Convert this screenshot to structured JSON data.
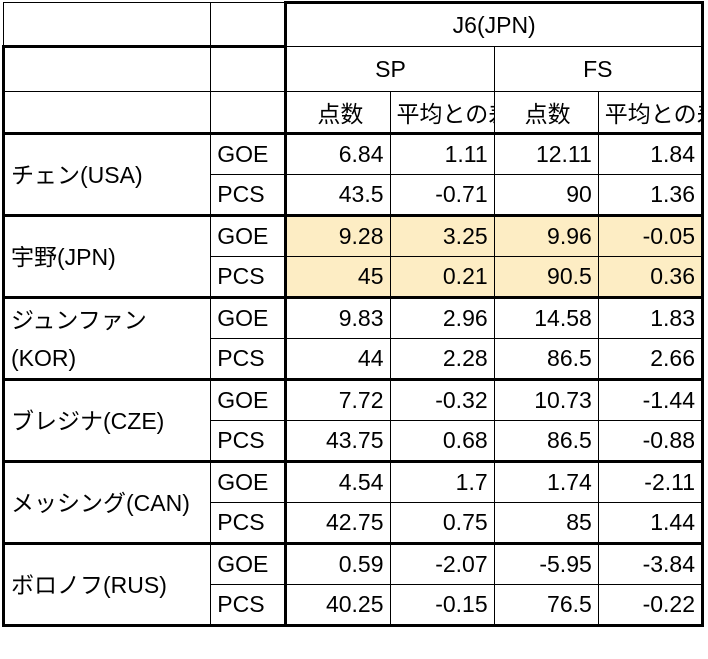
{
  "judge": "J6(JPN)",
  "segments": {
    "sp": "SP",
    "fs": "FS"
  },
  "columns": {
    "points": "点数",
    "diff": "平均との差"
  },
  "metrics": {
    "goe": "GOE",
    "pcs": "PCS"
  },
  "highlight_color": "#fdedc4",
  "skaters": [
    {
      "name": "チェン(USA)",
      "goe": {
        "sp_points": "6.84",
        "sp_diff": "1.11",
        "fs_points": "12.11",
        "fs_diff": "1.84"
      },
      "pcs": {
        "sp_points": "43.5",
        "sp_diff": "-0.71",
        "fs_points": "90",
        "fs_diff": "1.36"
      }
    },
    {
      "name": "宇野(JPN)",
      "goe": {
        "sp_points": "9.28",
        "sp_diff": "3.25",
        "fs_points": "9.96",
        "fs_diff": "-0.05"
      },
      "pcs": {
        "sp_points": "45",
        "sp_diff": "0.21",
        "fs_points": "90.5",
        "fs_diff": "0.36"
      }
    },
    {
      "name": "ジュンファン(KOR)",
      "goe": {
        "sp_points": "9.83",
        "sp_diff": "2.96",
        "fs_points": "14.58",
        "fs_diff": "1.83"
      },
      "pcs": {
        "sp_points": "44",
        "sp_diff": "2.28",
        "fs_points": "86.5",
        "fs_diff": "2.66"
      }
    },
    {
      "name": "ブレジナ(CZE)",
      "goe": {
        "sp_points": "7.72",
        "sp_diff": "-0.32",
        "fs_points": "10.73",
        "fs_diff": "-1.44"
      },
      "pcs": {
        "sp_points": "43.75",
        "sp_diff": "0.68",
        "fs_points": "86.5",
        "fs_diff": "-0.88"
      }
    },
    {
      "name": "メッシング(CAN)",
      "goe": {
        "sp_points": "4.54",
        "sp_diff": "1.7",
        "fs_points": "1.74",
        "fs_diff": "-2.11"
      },
      "pcs": {
        "sp_points": "42.75",
        "sp_diff": "0.75",
        "fs_points": "85",
        "fs_diff": "1.44"
      }
    },
    {
      "name": "ボロノフ(RUS)",
      "goe": {
        "sp_points": "0.59",
        "sp_diff": "-2.07",
        "fs_points": "-5.95",
        "fs_diff": "-3.84"
      },
      "pcs": {
        "sp_points": "40.25",
        "sp_diff": "-0.15",
        "fs_points": "76.5",
        "fs_diff": "-0.22"
      }
    }
  ]
}
